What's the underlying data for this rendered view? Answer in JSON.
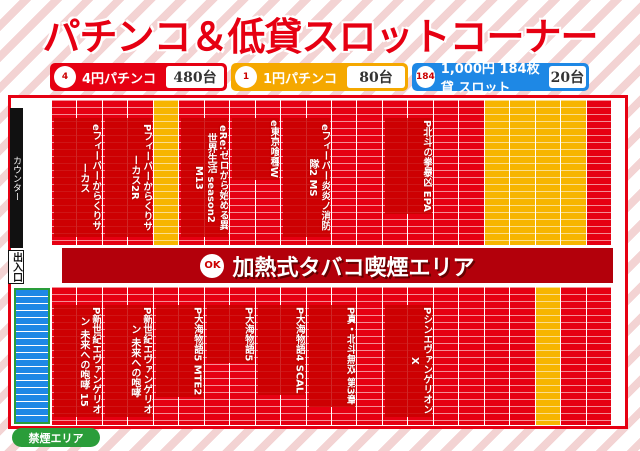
{
  "header": {
    "title": "パチンコ＆低貸スロットコーナー"
  },
  "legend": [
    {
      "icon": "4",
      "label": "4円パチンコ",
      "count": "480台"
    },
    {
      "icon": "1",
      "label": "1円パチンコ",
      "count": "80台"
    },
    {
      "icon": "184",
      "label": "1,000円 184枚貸 スロット",
      "count": "20台"
    }
  ],
  "floor": {
    "counter": "カウンター",
    "entrance": "出入口",
    "smoking_badge": "OK",
    "smoking_area": "加熱式タバコ喫煙エリア",
    "nonsmoking_area": "禁煙エリア",
    "top_machines": [
      "eフィーバーからくりサーカス",
      "Pフィーバーからくりサーカス2R",
      "eRe:ゼロから始める異世界生活 season2 M13",
      "e東京喰種W",
      "eフィーバー炎炎ノ消防隊2 MS",
      "P北斗の拳暴凶 EPA"
    ],
    "bottom_machines": [
      "P新世紀エヴァンゲリオン 未来への咆哮 15",
      "P新世紀エヴァンゲリオン 未来への咆哮",
      "P大海物語5 MTE2",
      "P大海物語5",
      "P大海物語4 SCAL",
      "P真・北斗無双 第3章",
      "PシンエヴァンゲリオンX"
    ]
  }
}
